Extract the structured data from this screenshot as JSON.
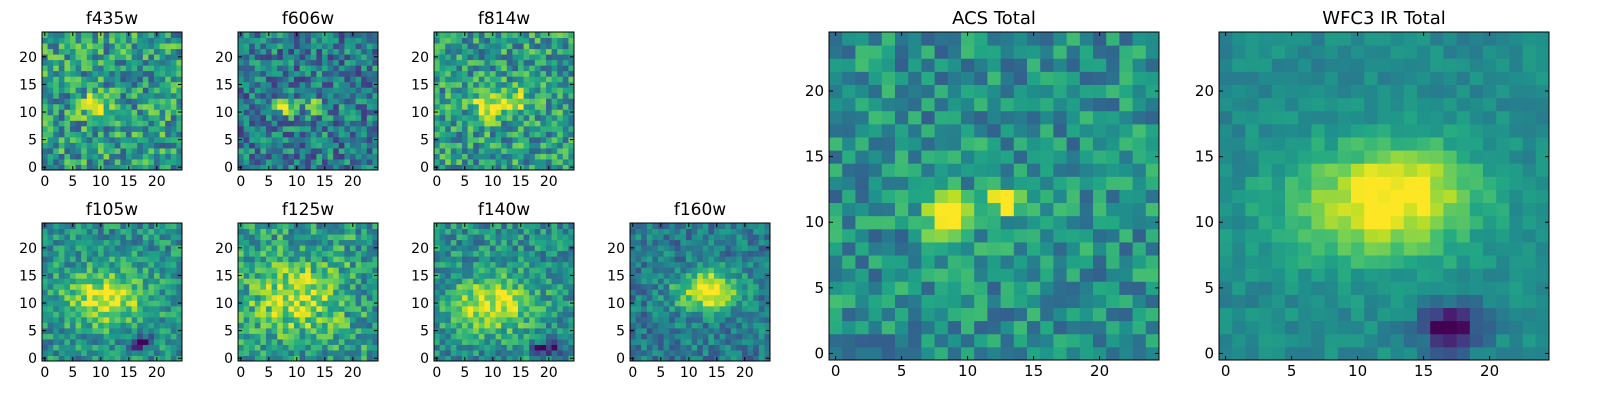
{
  "figure": {
    "background": "#ffffff",
    "colormap": "viridis"
  },
  "chart_data": [
    {
      "type": "heatmap",
      "title": "f435w",
      "xlabel": "",
      "ylabel": "",
      "xlim": [
        -0.5,
        24.5
      ],
      "ylim": [
        -0.5,
        24.5
      ],
      "xticks": [
        0,
        5,
        10,
        15,
        20
      ],
      "yticks": [
        0,
        5,
        10,
        15,
        20
      ],
      "grid_size": [
        25,
        25
      ],
      "seed": 11,
      "features": [
        {
          "x": 9,
          "y": 11,
          "sx": 1.6,
          "sy": 1.4,
          "amp": 0.5
        }
      ],
      "noise": 0.28,
      "base": 0.55
    },
    {
      "type": "heatmap",
      "title": "f606w",
      "xlabel": "",
      "ylabel": "",
      "xlim": [
        -0.5,
        24.5
      ],
      "ylim": [
        -0.5,
        24.5
      ],
      "xticks": [
        0,
        5,
        10,
        15,
        20
      ],
      "yticks": [
        0,
        5,
        10,
        15,
        20
      ],
      "grid_size": [
        25,
        25
      ],
      "seed": 23,
      "features": [
        {
          "x": 8,
          "y": 11,
          "sx": 1.3,
          "sy": 1.0,
          "amp": 0.65
        },
        {
          "x": 13,
          "y": 11,
          "sx": 1.0,
          "sy": 1.0,
          "amp": 0.55
        }
      ],
      "noise": 0.26,
      "base": 0.42
    },
    {
      "type": "heatmap",
      "title": "f814w",
      "xlabel": "",
      "ylabel": "",
      "xlim": [
        -0.5,
        24.5
      ],
      "ylim": [
        -0.5,
        24.5
      ],
      "xticks": [
        0,
        5,
        10,
        15,
        20
      ],
      "yticks": [
        0,
        5,
        10,
        15,
        20
      ],
      "grid_size": [
        25,
        25
      ],
      "seed": 37,
      "features": [
        {
          "x": 9,
          "y": 11,
          "sx": 2.0,
          "sy": 1.6,
          "amp": 0.45
        },
        {
          "x": 14,
          "y": 12,
          "sx": 2.0,
          "sy": 1.6,
          "amp": 0.35
        }
      ],
      "noise": 0.26,
      "base": 0.55
    },
    {
      "type": "heatmap",
      "title": "f105w",
      "xlabel": "",
      "ylabel": "",
      "xlim": [
        -0.5,
        24.5
      ],
      "ylim": [
        -0.5,
        24.5
      ],
      "xticks": [
        0,
        5,
        10,
        15,
        20
      ],
      "yticks": [
        0,
        5,
        10,
        15,
        20
      ],
      "grid_size": [
        25,
        25
      ],
      "seed": 41,
      "features": [
        {
          "x": 11,
          "y": 11,
          "sx": 5.0,
          "sy": 3.5,
          "amp": 0.45
        },
        {
          "x": 17,
          "y": 3,
          "sx": 1.5,
          "sy": 1.0,
          "amp": -0.5
        }
      ],
      "noise": 0.2,
      "base": 0.5
    },
    {
      "type": "heatmap",
      "title": "f125w",
      "xlabel": "",
      "ylabel": "",
      "xlim": [
        -0.5,
        24.5
      ],
      "ylim": [
        -0.5,
        24.5
      ],
      "xticks": [
        0,
        5,
        10,
        15,
        20
      ],
      "yticks": [
        0,
        5,
        10,
        15,
        20
      ],
      "grid_size": [
        25,
        25
      ],
      "seed": 53,
      "features": [
        {
          "x": 10,
          "y": 11,
          "sx": 5.5,
          "sy": 4.5,
          "amp": 0.35
        }
      ],
      "noise": 0.24,
      "base": 0.55
    },
    {
      "type": "heatmap",
      "title": "f140w",
      "xlabel": "",
      "ylabel": "",
      "xlim": [
        -0.5,
        24.5
      ],
      "ylim": [
        -0.5,
        24.5
      ],
      "xticks": [
        0,
        5,
        10,
        15,
        20
      ],
      "yticks": [
        0,
        5,
        10,
        15,
        20
      ],
      "grid_size": [
        25,
        25
      ],
      "seed": 67,
      "features": [
        {
          "x": 10,
          "y": 10,
          "sx": 5.0,
          "sy": 3.5,
          "amp": 0.45
        },
        {
          "x": 20,
          "y": 2,
          "sx": 2.0,
          "sy": 0.8,
          "amp": -0.5
        }
      ],
      "noise": 0.2,
      "base": 0.5
    },
    {
      "type": "heatmap",
      "title": "f160w",
      "xlabel": "",
      "ylabel": "",
      "xlim": [
        -0.5,
        24.5
      ],
      "ylim": [
        -0.5,
        24.5
      ],
      "xticks": [
        0,
        5,
        10,
        15,
        20
      ],
      "yticks": [
        0,
        5,
        10,
        15,
        20
      ],
      "grid_size": [
        25,
        25
      ],
      "seed": 79,
      "features": [
        {
          "x": 13,
          "y": 12,
          "sx": 4.0,
          "sy": 2.5,
          "amp": 0.5
        },
        {
          "x": 15,
          "y": 13,
          "sx": 2.0,
          "sy": 2.0,
          "amp": 0.25
        }
      ],
      "noise": 0.18,
      "base": 0.42
    },
    {
      "type": "heatmap",
      "title": "ACS Total",
      "xlabel": "",
      "ylabel": "",
      "xlim": [
        -0.5,
        24.5
      ],
      "ylim": [
        -0.5,
        24.5
      ],
      "xticks": [
        0,
        5,
        10,
        15,
        20
      ],
      "yticks": [
        0,
        5,
        10,
        15,
        20
      ],
      "grid_size": [
        25,
        25
      ],
      "seed": 97,
      "features": [
        {
          "x": 8.5,
          "y": 10.5,
          "sx": 1.3,
          "sy": 1.1,
          "amp": 0.75
        },
        {
          "x": 13,
          "y": 11.5,
          "sx": 1.0,
          "sy": 0.8,
          "amp": 0.6
        }
      ],
      "noise": 0.2,
      "base": 0.5
    },
    {
      "type": "heatmap",
      "title": "WFC3 IR Total",
      "xlabel": "",
      "ylabel": "",
      "xlim": [
        -0.5,
        24.5
      ],
      "ylim": [
        -0.5,
        24.5
      ],
      "xticks": [
        0,
        5,
        10,
        15,
        20
      ],
      "yticks": [
        0,
        5,
        10,
        15,
        20
      ],
      "grid_size": [
        25,
        25
      ],
      "seed": 113,
      "features": [
        {
          "x": 11,
          "y": 11,
          "sx": 5.0,
          "sy": 3.0,
          "amp": 0.4
        },
        {
          "x": 14,
          "y": 13,
          "sx": 3.5,
          "sy": 2.5,
          "amp": 0.25
        },
        {
          "x": 17,
          "y": 2,
          "sx": 1.5,
          "sy": 1.2,
          "amp": -0.6
        }
      ],
      "noise": 0.08,
      "base": 0.48
    }
  ]
}
